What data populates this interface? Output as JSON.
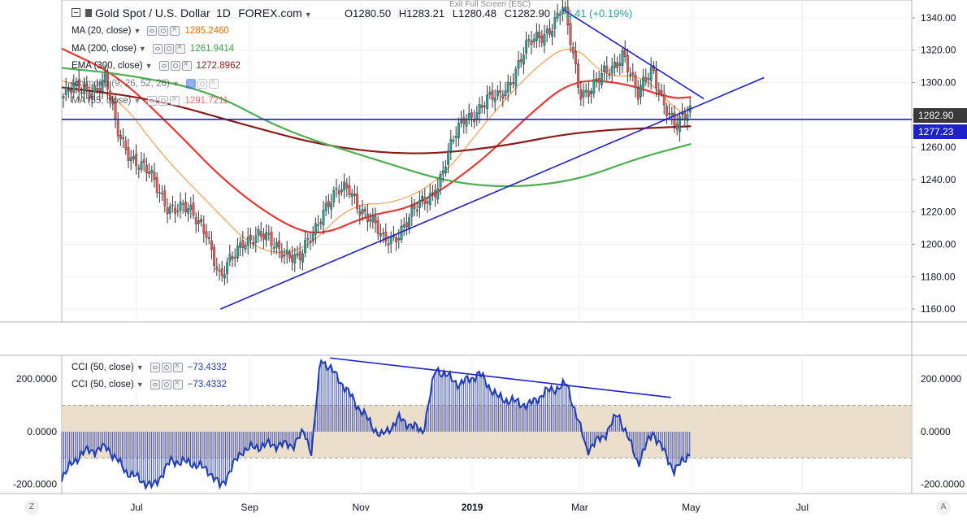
{
  "header": {
    "symbol": "Gold Spot / U.S. Dollar",
    "interval": "1D",
    "exchange": "FOREX.com",
    "fullscreen_hint": "Exit Full Screen (ESC)",
    "ohlc": {
      "open": "O1280.50",
      "high": "H1283.21",
      "low": "L1280.48",
      "close": "C1282.90",
      "change": "+2.41 (+0.19%)"
    }
  },
  "indicators": [
    {
      "label": "MA (20, close)",
      "value": "1285.2460",
      "color": "#ef6c00"
    },
    {
      "label": "MA (200, close)",
      "value": "1261.9414",
      "color": "#43a047"
    },
    {
      "label": "EMA (300, close)",
      "value": "1272.8962",
      "color": "#8b1a1a"
    },
    {
      "label": "Ichimoku (9, 26, 52, 26)",
      "value": "",
      "color": "#555555"
    },
    {
      "label": "MA (55, close)",
      "value": "1291.7211",
      "color": "#e53935"
    }
  ],
  "price_tags": {
    "last_price": "1282.90",
    "last_price_color": "#3a3a3a",
    "line_price": "1277.23",
    "line_price_color": "#1e22c9"
  },
  "lower_indicators": [
    {
      "label": "CCI (50, close)",
      "value": "−73.4332",
      "color": "#1e3cb4"
    },
    {
      "label": "CCI (50, close)",
      "value": "−73.4332",
      "color": "#1e3cb4"
    }
  ],
  "corner_buttons": {
    "left": "Z",
    "right": "A"
  },
  "chart_data": [
    {
      "type": "candlestick",
      "title": "Gold Spot / U.S. Dollar, 1D",
      "x_axis_labels": [
        "Jul",
        "Sep",
        "Nov",
        "2019",
        "Mar",
        "May",
        "Jul"
      ],
      "y_axis_ticks": [
        1160,
        1180,
        1200,
        1220,
        1240,
        1260,
        1280,
        1300,
        1320,
        1340
      ],
      "ylim": [
        1152,
        1351
      ],
      "x_dates_range": [
        "2018-05-21",
        "2019-08-30"
      ],
      "close_path": [
        {
          "date": "2018-05-21",
          "close": 1291
        },
        {
          "date": "2018-06-05",
          "close": 1297
        },
        {
          "date": "2018-06-14",
          "close": 1300
        },
        {
          "date": "2018-06-20",
          "close": 1270
        },
        {
          "date": "2018-07-02",
          "close": 1250
        },
        {
          "date": "2018-07-18",
          "close": 1226
        },
        {
          "date": "2018-08-08",
          "close": 1212
        },
        {
          "date": "2018-08-16",
          "close": 1175
        },
        {
          "date": "2018-08-28",
          "close": 1205
        },
        {
          "date": "2018-09-18",
          "close": 1200
        },
        {
          "date": "2018-09-28",
          "close": 1187
        },
        {
          "date": "2018-10-11",
          "close": 1223
        },
        {
          "date": "2018-10-26",
          "close": 1235
        },
        {
          "date": "2018-11-13",
          "close": 1201
        },
        {
          "date": "2018-11-28",
          "close": 1215
        },
        {
          "date": "2018-12-14",
          "close": 1240
        },
        {
          "date": "2018-12-28",
          "close": 1280
        },
        {
          "date": "2019-01-15",
          "close": 1290
        },
        {
          "date": "2019-01-31",
          "close": 1320
        },
        {
          "date": "2019-02-20",
          "close": 1345
        },
        {
          "date": "2019-03-01",
          "close": 1295
        },
        {
          "date": "2019-03-18",
          "close": 1305
        },
        {
          "date": "2019-03-25",
          "close": 1322
        },
        {
          "date": "2019-04-02",
          "close": 1290
        },
        {
          "date": "2019-04-10",
          "close": 1308
        },
        {
          "date": "2019-04-23",
          "close": 1270
        },
        {
          "date": "2019-05-01",
          "close": 1282.9
        }
      ],
      "moving_averages": [
        {
          "name": "MA (20, close)",
          "color": "#f5a05a",
          "points": [
            {
              "date": "2018-05-21",
              "v": 1301
            },
            {
              "date": "2018-06-20",
              "v": 1293
            },
            {
              "date": "2018-07-15",
              "v": 1255
            },
            {
              "date": "2018-08-10",
              "v": 1225
            },
            {
              "date": "2018-09-05",
              "v": 1195
            },
            {
              "date": "2018-10-01",
              "v": 1195
            },
            {
              "date": "2018-10-26",
              "v": 1225
            },
            {
              "date": "2018-11-20",
              "v": 1225
            },
            {
              "date": "2018-12-15",
              "v": 1240
            },
            {
              "date": "2019-01-10",
              "v": 1278
            },
            {
              "date": "2019-02-05",
              "v": 1310
            },
            {
              "date": "2019-02-25",
              "v": 1325
            },
            {
              "date": "2019-03-15",
              "v": 1303
            },
            {
              "date": "2019-04-05",
              "v": 1305
            },
            {
              "date": "2019-04-25",
              "v": 1280
            },
            {
              "date": "2019-05-01",
              "v": 1285
            }
          ]
        },
        {
          "name": "MA (55, close)",
          "color": "#e53935",
          "points": [
            {
              "date": "2018-05-21",
              "v": 1321
            },
            {
              "date": "2018-06-20",
              "v": 1305
            },
            {
              "date": "2018-07-20",
              "v": 1273
            },
            {
              "date": "2018-08-20",
              "v": 1237
            },
            {
              "date": "2018-09-20",
              "v": 1212
            },
            {
              "date": "2018-10-10",
              "v": 1205
            },
            {
              "date": "2018-11-05",
              "v": 1218
            },
            {
              "date": "2018-12-01",
              "v": 1223
            },
            {
              "date": "2019-01-05",
              "v": 1250
            },
            {
              "date": "2019-02-01",
              "v": 1280
            },
            {
              "date": "2019-02-25",
              "v": 1302
            },
            {
              "date": "2019-03-25",
              "v": 1300
            },
            {
              "date": "2019-04-20",
              "v": 1290
            },
            {
              "date": "2019-05-01",
              "v": 1291
            }
          ]
        },
        {
          "name": "EMA (300, close)",
          "color": "#8b1a1a",
          "points": [
            {
              "date": "2018-05-21",
              "v": 1297
            },
            {
              "date": "2018-07-10",
              "v": 1290
            },
            {
              "date": "2018-09-01",
              "v": 1273
            },
            {
              "date": "2018-10-15",
              "v": 1260
            },
            {
              "date": "2018-12-01",
              "v": 1255
            },
            {
              "date": "2019-01-15",
              "v": 1260
            },
            {
              "date": "2019-03-01",
              "v": 1270
            },
            {
              "date": "2019-05-01",
              "v": 1273
            }
          ]
        },
        {
          "name": "MA (200, close)",
          "color": "#4caf50",
          "points": [
            {
              "date": "2018-05-21",
              "v": 1309
            },
            {
              "date": "2018-06-25",
              "v": 1305
            },
            {
              "date": "2018-08-10",
              "v": 1295
            },
            {
              "date": "2018-09-20",
              "v": 1270
            },
            {
              "date": "2018-11-10",
              "v": 1252
            },
            {
              "date": "2018-12-20",
              "v": 1238
            },
            {
              "date": "2019-01-25",
              "v": 1235
            },
            {
              "date": "2019-03-01",
              "v": 1240
            },
            {
              "date": "2019-04-01",
              "v": 1253
            },
            {
              "date": "2019-05-01",
              "v": 1262
            }
          ]
        }
      ],
      "trendlines": [
        {
          "name": "support",
          "color": "#1e22c9",
          "from": {
            "date": "2018-08-16",
            "v": 1160
          },
          "to": {
            "date": "2019-06-10",
            "v": 1303
          }
        },
        {
          "name": "resistance",
          "color": "#1e22c9",
          "from": {
            "date": "2019-02-20",
            "v": 1345
          },
          "to": {
            "date": "2019-05-08",
            "v": 1290
          }
        },
        {
          "name": "horizontal",
          "color": "#1e22c9",
          "from": {
            "date": "2018-05-21",
            "v": 1277.23
          },
          "to": {
            "date": "2019-08-30",
            "v": 1277.23
          }
        }
      ]
    },
    {
      "type": "area",
      "title": "CCI (50, close)",
      "y_axis_ticks": [
        -200,
        0,
        200
      ],
      "ylim": [
        -235,
        290
      ],
      "band": [
        -100,
        100
      ],
      "points": [
        {
          "date": "2018-05-21",
          "v": -170
        },
        {
          "date": "2018-06-01",
          "v": -80
        },
        {
          "date": "2018-06-15",
          "v": -60
        },
        {
          "date": "2018-06-25",
          "v": -150
        },
        {
          "date": "2018-07-10",
          "v": -210
        },
        {
          "date": "2018-07-20",
          "v": -110
        },
        {
          "date": "2018-08-01",
          "v": -120
        },
        {
          "date": "2018-08-10",
          "v": -150
        },
        {
          "date": "2018-08-16",
          "v": -210
        },
        {
          "date": "2018-08-28",
          "v": -70
        },
        {
          "date": "2018-09-10",
          "v": -50
        },
        {
          "date": "2018-09-25",
          "v": -50
        },
        {
          "date": "2018-10-01",
          "v": 0
        },
        {
          "date": "2018-10-05",
          "v": -80
        },
        {
          "date": "2018-10-10",
          "v": 280
        },
        {
          "date": "2018-10-20",
          "v": 200
        },
        {
          "date": "2018-10-30",
          "v": 100
        },
        {
          "date": "2018-11-12",
          "v": -20
        },
        {
          "date": "2018-11-22",
          "v": 50
        },
        {
          "date": "2018-12-05",
          "v": 0
        },
        {
          "date": "2018-12-12",
          "v": 240
        },
        {
          "date": "2018-12-25",
          "v": 180
        },
        {
          "date": "2019-01-05",
          "v": 220
        },
        {
          "date": "2019-01-15",
          "v": 130
        },
        {
          "date": "2019-02-01",
          "v": 100
        },
        {
          "date": "2019-02-10",
          "v": 150
        },
        {
          "date": "2019-02-22",
          "v": 180
        },
        {
          "date": "2019-03-05",
          "v": -70
        },
        {
          "date": "2019-03-15",
          "v": -10
        },
        {
          "date": "2019-03-22",
          "v": 70
        },
        {
          "date": "2019-04-02",
          "v": -120
        },
        {
          "date": "2019-04-10",
          "v": 0
        },
        {
          "date": "2019-04-22",
          "v": -150
        },
        {
          "date": "2019-05-01",
          "v": -73.4332
        }
      ],
      "trendlines": [
        {
          "name": "cci-resistance",
          "color": "#1e22c9",
          "from": {
            "date": "2018-10-15",
            "v": 280
          },
          "to": {
            "date": "2019-04-20",
            "v": 130
          }
        }
      ]
    }
  ]
}
